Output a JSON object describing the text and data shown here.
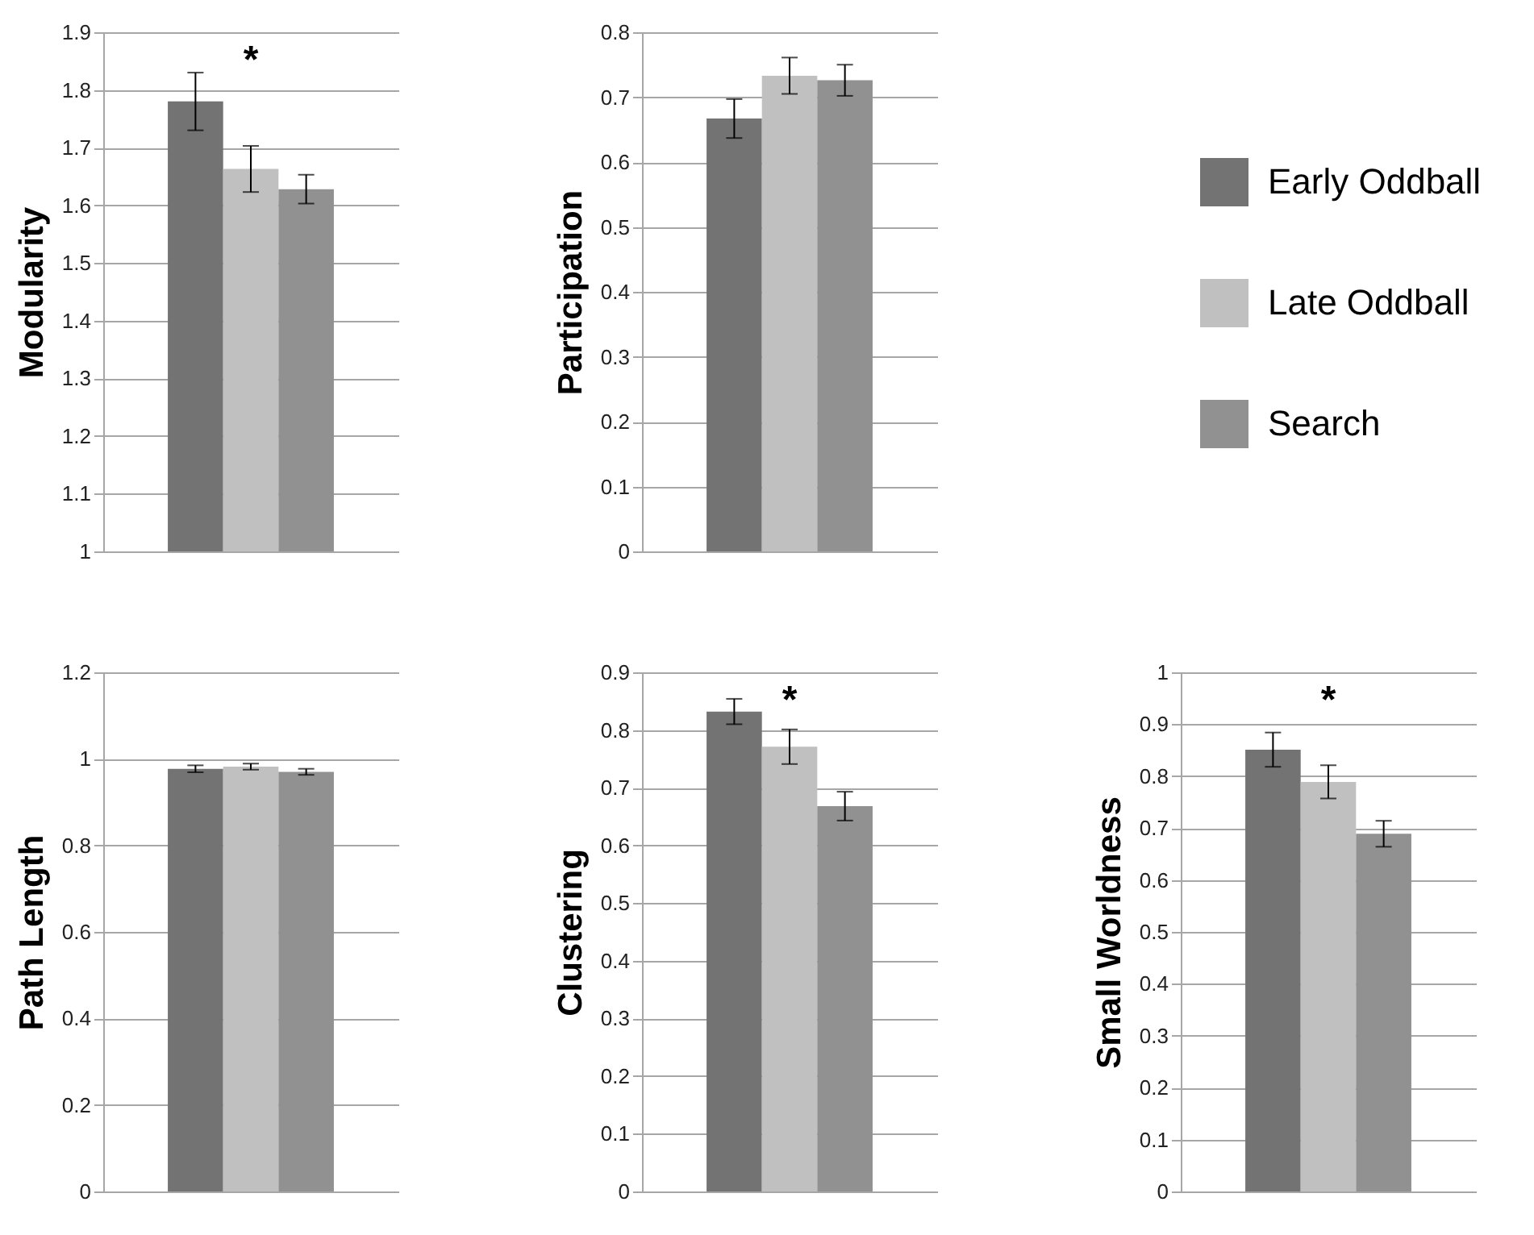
{
  "chart_data": [
    {
      "type": "bar",
      "ylabel": "Modularity",
      "categories": [
        null
      ],
      "ylim": [
        1,
        1.9
      ],
      "yticks": [
        1,
        1.1,
        1.2,
        1.3,
        1.4,
        1.5,
        1.6,
        1.7,
        1.8,
        1.9
      ],
      "grid": "y",
      "tick_labels": "y",
      "legend": "right",
      "annotations": [
        "*"
      ],
      "series": [
        {
          "name": "Early Oddball",
          "color": "#737373",
          "values": [
            1.78
          ],
          "errors": [
            0.05
          ]
        },
        {
          "name": "Late Oddball",
          "color": "#c0c0c0",
          "values": [
            1.663
          ],
          "errors": [
            0.04
          ]
        },
        {
          "name": "Search",
          "color": "#919191",
          "values": [
            1.628
          ],
          "errors": [
            0.025
          ]
        }
      ]
    },
    {
      "type": "bar",
      "ylabel": "Participation",
      "categories": [
        null
      ],
      "ylim": [
        0,
        0.8
      ],
      "yticks": [
        0,
        0.1,
        0.2,
        0.3,
        0.4,
        0.5,
        0.6,
        0.7,
        0.8
      ],
      "grid": "y",
      "tick_labels": "y",
      "legend": "right",
      "series": [
        {
          "name": "Early Oddball",
          "color": "#737373",
          "values": [
            0.667
          ],
          "errors": [
            0.03
          ]
        },
        {
          "name": "Late Oddball",
          "color": "#c0c0c0",
          "values": [
            0.733
          ],
          "errors": [
            0.028
          ]
        },
        {
          "name": "Search",
          "color": "#919191",
          "values": [
            0.726
          ],
          "errors": [
            0.024
          ]
        }
      ]
    },
    {
      "type": "bar",
      "ylabel": "Path Length",
      "categories": [
        null
      ],
      "ylim": [
        0,
        1.2
      ],
      "yticks": [
        0,
        0.2,
        0.4,
        0.6,
        0.8,
        1,
        1.2
      ],
      "grid": "y",
      "tick_labels": "y",
      "legend": "right",
      "series": [
        {
          "name": "Early Oddball",
          "color": "#737373",
          "values": [
            0.977
          ],
          "errors": [
            0.008
          ]
        },
        {
          "name": "Late Oddball",
          "color": "#c0c0c0",
          "values": [
            0.982
          ],
          "errors": [
            0.007
          ]
        },
        {
          "name": "Search",
          "color": "#919191",
          "values": [
            0.97
          ],
          "errors": [
            0.007
          ]
        }
      ]
    },
    {
      "type": "bar",
      "ylabel": "Clustering",
      "categories": [
        null
      ],
      "ylim": [
        0,
        0.9
      ],
      "yticks": [
        0,
        0.1,
        0.2,
        0.3,
        0.4,
        0.5,
        0.6,
        0.7,
        0.8,
        0.9
      ],
      "grid": "y",
      "tick_labels": "y",
      "legend": "right",
      "annotations": [
        "*"
      ],
      "series": [
        {
          "name": "Early Oddball",
          "color": "#737373",
          "values": [
            0.832
          ],
          "errors": [
            0.022
          ]
        },
        {
          "name": "Late Oddball",
          "color": "#c0c0c0",
          "values": [
            0.771
          ],
          "errors": [
            0.03
          ]
        },
        {
          "name": "Search",
          "color": "#919191",
          "values": [
            0.668
          ],
          "errors": [
            0.025
          ]
        }
      ]
    },
    {
      "type": "bar",
      "ylabel": "Small Worldness",
      "categories": [
        null
      ],
      "ylim": [
        0,
        1
      ],
      "yticks": [
        0,
        0.1,
        0.2,
        0.3,
        0.4,
        0.5,
        0.6,
        0.7,
        0.8,
        0.9,
        1
      ],
      "grid": "y",
      "tick_labels": "y",
      "legend": "right",
      "annotations": [
        "*"
      ],
      "series": [
        {
          "name": "Early Oddball",
          "color": "#737373",
          "values": [
            0.851
          ],
          "errors": [
            0.033
          ]
        },
        {
          "name": "Late Oddball",
          "color": "#c0c0c0",
          "values": [
            0.789
          ],
          "errors": [
            0.032
          ]
        },
        {
          "name": "Search",
          "color": "#919191",
          "values": [
            0.689
          ],
          "errors": [
            0.025
          ]
        }
      ]
    }
  ]
}
